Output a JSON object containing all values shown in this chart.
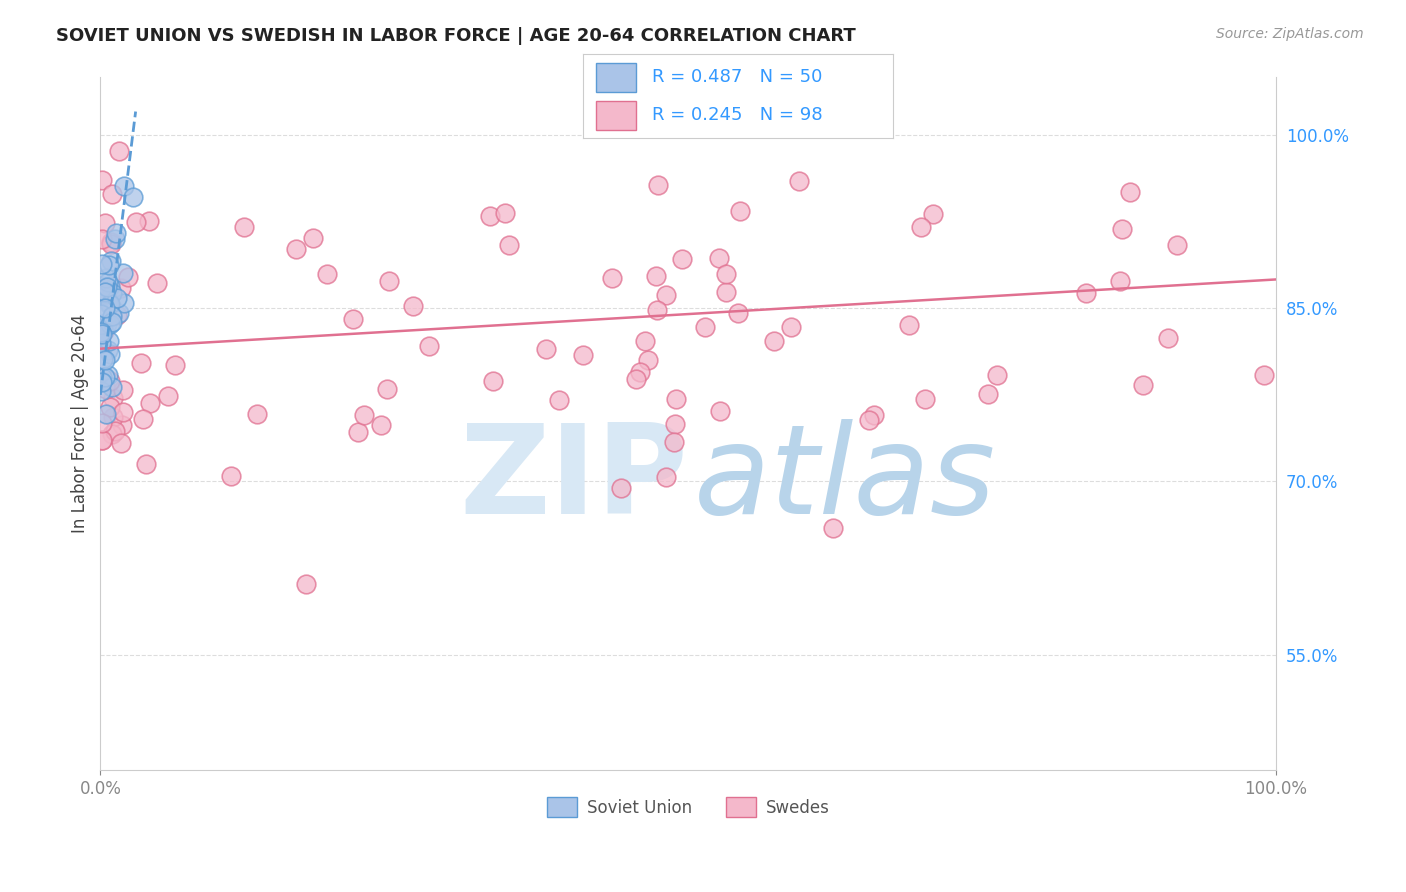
{
  "title": "SOVIET UNION VS SWEDISH IN LABOR FORCE | AGE 20-64 CORRELATION CHART",
  "source_text": "Source: ZipAtlas.com",
  "ylabel": "In Labor Force | Age 20-64",
  "xlim": [
    0,
    1
  ],
  "ylim": [
    0.45,
    1.05
  ],
  "blue_r": 0.487,
  "blue_n": 50,
  "pink_r": 0.245,
  "pink_n": 98,
  "blue_fill": "#aac4e8",
  "blue_edge": "#5b9bd5",
  "pink_fill": "#f4b8cb",
  "pink_edge": "#e07090",
  "blue_line_color": "#5b9bd5",
  "pink_line_color": "#e07090",
  "title_color": "#222222",
  "axis_color": "#888888",
  "right_tick_color": "#3399ff",
  "legend_text_color": "#3399ff",
  "watermark_zip_color": "#d8e8f5",
  "watermark_atlas_color": "#b8d4ea",
  "grid_color": "#dddddd",
  "background_color": "#ffffff",
  "spine_color": "#cccccc",
  "bottom_legend_text_color": "#555555",
  "pink_trend_start_y": 0.815,
  "pink_trend_end_y": 0.875,
  "blue_trend_x0": 0.0,
  "blue_trend_y0": 0.775,
  "blue_trend_x1": 0.022,
  "blue_trend_y1": 0.955
}
